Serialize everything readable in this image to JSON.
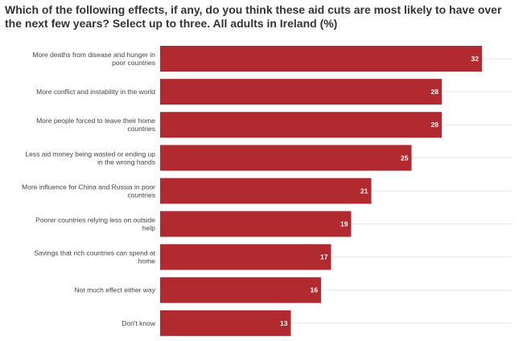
{
  "chart_data": {
    "type": "bar",
    "orientation": "horizontal",
    "title": "Which of the following effects, if any, do you think these aid cuts are most likely to have over the next few years? Select up to three. All adults in Ireland (%)",
    "categories": [
      [
        "More deaths from disease and hunger in",
        "poor countries"
      ],
      [
        "More conflict and instability in the world"
      ],
      [
        "More people forced to leave their home",
        "countries"
      ],
      [
        "Less aid money being wasted or ending up",
        "in the wrong hands"
      ],
      [
        "More influence for China and Russia in poor",
        "countries"
      ],
      [
        "Poorer countries relying less on outside",
        "help"
      ],
      [
        "Savings that rich countries can spend at",
        "home"
      ],
      [
        "Not much effect either way"
      ],
      [
        "Don't know"
      ]
    ],
    "values": [
      32,
      28,
      28,
      25,
      21,
      19,
      17,
      16,
      13
    ],
    "value_labels": [
      "32",
      "28",
      "28",
      "25",
      "21",
      "19",
      "17",
      "16",
      "13"
    ],
    "xlim": [
      0,
      35
    ],
    "bar_color": "#b02a30",
    "gridlines": true,
    "legend": "none"
  }
}
